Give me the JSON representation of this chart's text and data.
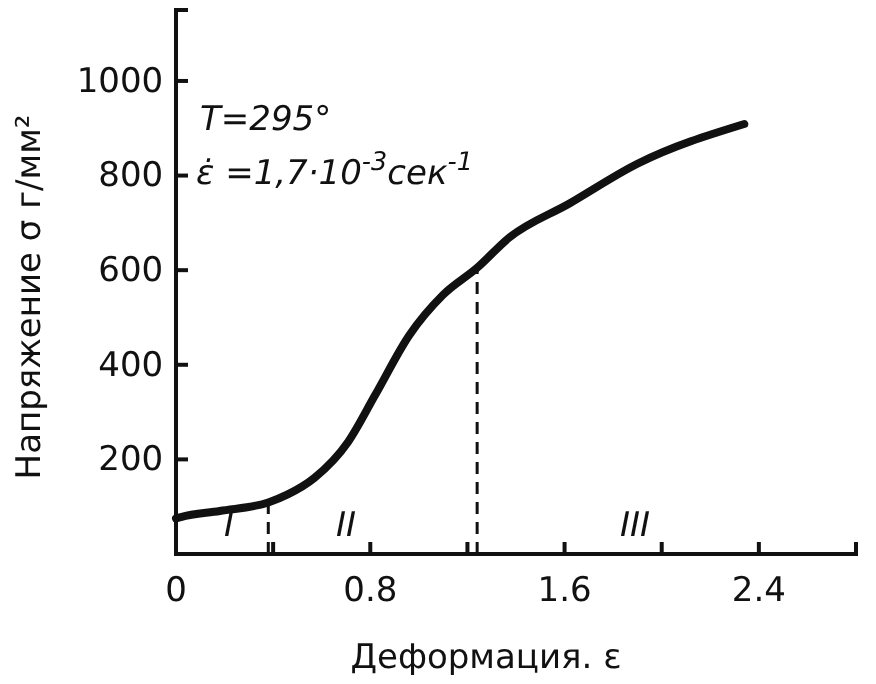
{
  "chart_data": {
    "type": "line",
    "xlabel": "Деформация. ε",
    "ylabel": "Напряжение σ г/мм²",
    "x": [
      0,
      0.02,
      0.18,
      0.38,
      0.46,
      0.57,
      0.71,
      0.82,
      0.96,
      1.1,
      1.24,
      1.37,
      1.62,
      1.9,
      2.34
    ],
    "series": [
      {
        "color": "#111111",
        "values": [
          75,
          78,
          91,
          109,
          126,
          161,
          238,
          336,
          462,
          548,
          605,
          668,
          741,
          825,
          909
        ]
      }
    ],
    "xlim": [
      0,
      2.8
    ],
    "ylim": [
      0,
      1150
    ],
    "xticks": [
      0,
      {
        "value": 0.4,
        "label": null
      },
      0.8,
      {
        "value": 1.2,
        "label": null
      },
      1.6,
      {
        "value": 2.0,
        "label": null
      },
      2.4
    ],
    "yticks": [
      {
        "value": 0,
        "label": null
      },
      200,
      400,
      600,
      800,
      1000
    ],
    "ref_lines": [
      {
        "axis": "x",
        "value": 0.38,
        "line_style": "dashed"
      },
      {
        "axis": "x",
        "value": 1.24,
        "line_style": "dashed"
      }
    ],
    "annotations": [
      "I",
      "II",
      "III",
      "T=295°",
      "ε̇ =1,7·10$^{-3}$сек$^{-1}$"
    ],
    "grid": false,
    "marker": "none",
    "line_style": "solid"
  }
}
